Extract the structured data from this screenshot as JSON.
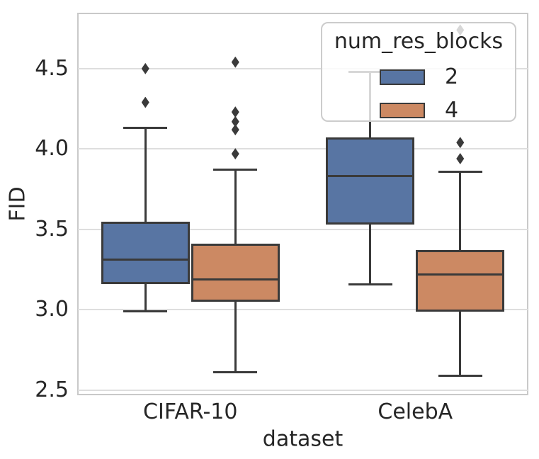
{
  "chart_data": {
    "type": "boxplot",
    "title": "",
    "xlabel": "dataset",
    "ylabel": "FID",
    "categories": [
      "CIFAR-10",
      "CelebA"
    ],
    "ytick_labels": [
      "2.5",
      "3.0",
      "3.5",
      "4.0",
      "4.5"
    ],
    "ytick_values": [
      2.5,
      3.0,
      3.5,
      4.0,
      4.5
    ],
    "ylim": [
      2.473,
      4.843
    ],
    "grid": true,
    "legend": {
      "title": "num_res_blocks",
      "position": "upper right",
      "entries": [
        {
          "label": "2",
          "color": "#5875A3"
        },
        {
          "label": "4",
          "color": "#CC8963"
        }
      ]
    },
    "series": [
      {
        "name": "2",
        "color": "#5875A3",
        "boxes": [
          {
            "category": "CIFAR-10",
            "whisker_low": 2.99,
            "q1": 3.16,
            "median": 3.31,
            "q3": 3.55,
            "whisker_high": 4.13,
            "outliers": [
              4.29,
              4.5
            ]
          },
          {
            "category": "CelebA",
            "whisker_low": 3.16,
            "q1": 3.53,
            "median": 3.83,
            "q3": 4.07,
            "whisker_high": 4.48,
            "outliers": []
          }
        ]
      },
      {
        "name": "4",
        "color": "#CC8963",
        "boxes": [
          {
            "category": "CIFAR-10",
            "whisker_low": 2.61,
            "q1": 3.05,
            "median": 3.19,
            "q3": 3.41,
            "whisker_high": 3.87,
            "outliers": [
              3.97,
              4.12,
              4.17,
              4.23,
              4.54
            ]
          },
          {
            "category": "CelebA",
            "whisker_low": 2.59,
            "q1": 2.99,
            "median": 3.22,
            "q3": 3.37,
            "whisker_high": 3.86,
            "outliers": [
              3.94,
              4.04,
              4.74
            ]
          }
        ]
      }
    ],
    "style": {
      "box_edge_color": "#3A3A3A",
      "grid_color": "#DEDEDE",
      "spine_color": "#C9C9C9",
      "text_color": "#262626",
      "background": "#FFFFFF"
    }
  }
}
